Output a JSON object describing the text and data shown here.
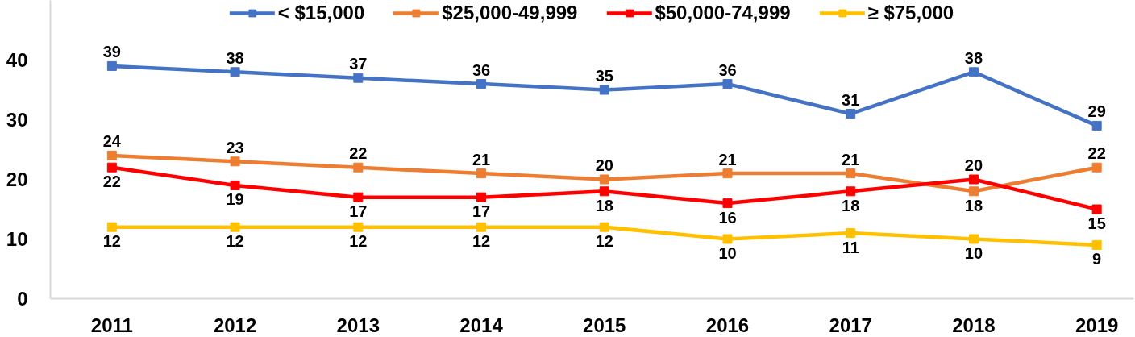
{
  "chart_data": {
    "type": "line",
    "categories": [
      "2011",
      "2012",
      "2013",
      "2014",
      "2015",
      "2016",
      "2017",
      "2018",
      "2019"
    ],
    "series": [
      {
        "name": "< $15,000",
        "color": "#4472c4",
        "values": [
          39,
          38,
          37,
          36,
          35,
          36,
          31,
          38,
          29
        ]
      },
      {
        "name": "$25,000-49,999",
        "color": "#ed7d31",
        "values": [
          24,
          23,
          22,
          21,
          20,
          21,
          21,
          18,
          22
        ]
      },
      {
        "name": "$50,000-74,999",
        "color": "#ff0000",
        "values": [
          22,
          19,
          17,
          17,
          18,
          16,
          18,
          20,
          15
        ]
      },
      {
        "name": "≥ $75,000",
        "color": "#ffc000",
        "values": [
          12,
          12,
          12,
          12,
          12,
          10,
          11,
          10,
          9
        ]
      }
    ],
    "ylim": [
      0,
      50
    ],
    "yticks": [
      0,
      10,
      20,
      30,
      40
    ],
    "grid": false,
    "legend": "top",
    "marker": "square",
    "line_style": "solid",
    "data_labels": true
  }
}
